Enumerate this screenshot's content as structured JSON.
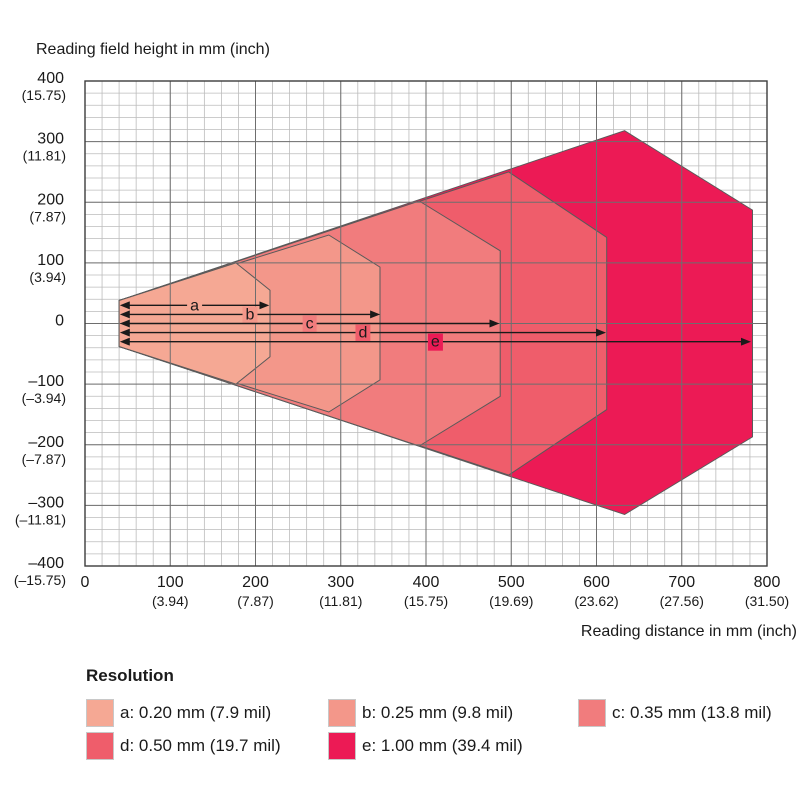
{
  "chart_data": {
    "type": "area",
    "title": "",
    "xlabel": "Reading distance in mm (inch)",
    "ylabel": "Reading field height in mm (inch)",
    "xlim": [
      0,
      800
    ],
    "ylim": [
      -400,
      400
    ],
    "grid": true,
    "x_ticks": [
      {
        "value": 0,
        "mm": "0",
        "inch": ""
      },
      {
        "value": 100,
        "mm": "100",
        "inch": "(3.94)"
      },
      {
        "value": 200,
        "mm": "200",
        "inch": "(7.87)"
      },
      {
        "value": 300,
        "mm": "300",
        "inch": "(11.81)"
      },
      {
        "value": 400,
        "mm": "400",
        "inch": "(15.75)"
      },
      {
        "value": 500,
        "mm": "500",
        "inch": "(19.69)"
      },
      {
        "value": 600,
        "mm": "600",
        "inch": "(23.62)"
      },
      {
        "value": 700,
        "mm": "700",
        "inch": "(27.56)"
      },
      {
        "value": 800,
        "mm": "800",
        "inch": "(31.50)"
      }
    ],
    "y_ticks": [
      {
        "value": 400,
        "mm": "400",
        "inch": "(15.75)"
      },
      {
        "value": 300,
        "mm": "300",
        "inch": "(11.81)"
      },
      {
        "value": 200,
        "mm": "200",
        "inch": "(7.87)"
      },
      {
        "value": 100,
        "mm": "100",
        "inch": "(3.94)"
      },
      {
        "value": 0,
        "mm": "0",
        "inch": ""
      },
      {
        "value": -100,
        "mm": "–100",
        "inch": "(–3.94)"
      },
      {
        "value": -200,
        "mm": "–200",
        "inch": "(–7.87)"
      },
      {
        "value": -300,
        "mm": "–300",
        "inch": "(–11.81)"
      },
      {
        "value": -400,
        "mm": "–400",
        "inch": "(–15.75)"
      }
    ],
    "series": [
      {
        "name": "e",
        "color": "#ec1a55",
        "points": [
          [
            40,
            -38
          ],
          [
            40,
            38
          ],
          [
            633,
            318
          ],
          [
            783,
            187
          ],
          [
            783,
            -187
          ],
          [
            633,
            -315
          ],
          [
            40,
            -38
          ]
        ],
        "reach": 780,
        "arrow_y": -30
      },
      {
        "name": "d",
        "color": "#ef5d6b",
        "points": [
          [
            40,
            -38
          ],
          [
            40,
            38
          ],
          [
            497,
            250
          ],
          [
            612,
            142
          ],
          [
            612,
            -142
          ],
          [
            497,
            -250
          ],
          [
            40,
            -38
          ]
        ],
        "reach": 610,
        "arrow_y": -15
      },
      {
        "name": "c",
        "color": "#f17c7d",
        "points": [
          [
            40,
            -38
          ],
          [
            40,
            38
          ],
          [
            392,
            202
          ],
          [
            487,
            120
          ],
          [
            487,
            -120
          ],
          [
            392,
            -202
          ],
          [
            40,
            -38
          ]
        ],
        "reach": 485,
        "arrow_y": 0
      },
      {
        "name": "b",
        "color": "#f3978a",
        "points": [
          [
            40,
            -38
          ],
          [
            40,
            38
          ],
          [
            286,
            146
          ],
          [
            346,
            93
          ],
          [
            346,
            -93
          ],
          [
            286,
            -146
          ],
          [
            40,
            -38
          ]
        ],
        "reach": 345,
        "arrow_y": 15
      },
      {
        "name": "a",
        "color": "#f5a894",
        "points": [
          [
            40,
            -38
          ],
          [
            40,
            38
          ],
          [
            177,
            100
          ],
          [
            217,
            55
          ],
          [
            217,
            -55
          ],
          [
            177,
            -100
          ],
          [
            40,
            -38
          ]
        ],
        "reach": 215,
        "arrow_y": 30
      }
    ]
  },
  "legend": {
    "title": "Resolution",
    "items": [
      {
        "key": "a",
        "label": "a: 0.20 mm (7.9 mil)",
        "color": "#f5a894"
      },
      {
        "key": "b",
        "label": "b: 0.25 mm (9.8 mil)",
        "color": "#f3978a"
      },
      {
        "key": "c",
        "label": "c: 0.35 mm (13.8 mil)",
        "color": "#f17c7d"
      },
      {
        "key": "d",
        "label": "d: 0.50 mm (19.7 mil)",
        "color": "#ef5d6b"
      },
      {
        "key": "e",
        "label": "e: 1.00 mm (39.4 mil)",
        "color": "#ec1a55"
      }
    ]
  }
}
